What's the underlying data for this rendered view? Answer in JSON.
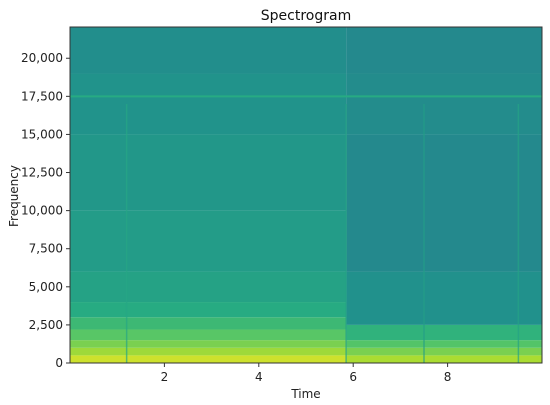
{
  "chart_data": {
    "type": "heatmap",
    "title": "Spectrogram",
    "xlabel": "Time",
    "ylabel": "Frequency",
    "xlim": [
      0,
      10
    ],
    "ylim": [
      0,
      22050
    ],
    "x_ticks": [
      {
        "value": 2,
        "label": "2"
      },
      {
        "value": 4,
        "label": "4"
      },
      {
        "value": 6,
        "label": "6"
      },
      {
        "value": 8,
        "label": "8"
      }
    ],
    "y_ticks": [
      {
        "value": 0,
        "label": "0"
      },
      {
        "value": 2500,
        "label": "2,500"
      },
      {
        "value": 5000,
        "label": "5,000"
      },
      {
        "value": 7500,
        "label": "7,500"
      },
      {
        "value": 10000,
        "label": "10,000"
      },
      {
        "value": 12500,
        "label": "12,500"
      },
      {
        "value": 15000,
        "label": "15,000"
      },
      {
        "value": 17500,
        "label": "17,500"
      },
      {
        "value": 20000,
        "label": "20,000"
      }
    ],
    "colormap": "viridis",
    "grid": false,
    "segments": [
      {
        "time_range": [
          0,
          5.85
        ],
        "frequency_bands": [
          {
            "freq_range": [
              0,
              500
            ],
            "intensity": 0.93
          },
          {
            "freq_range": [
              500,
              1000
            ],
            "intensity": 0.86
          },
          {
            "freq_range": [
              1000,
              1500
            ],
            "intensity": 0.8
          },
          {
            "freq_range": [
              1500,
              2200
            ],
            "intensity": 0.74
          },
          {
            "freq_range": [
              2200,
              3000
            ],
            "intensity": 0.68
          },
          {
            "freq_range": [
              3000,
              4000
            ],
            "intensity": 0.62
          },
          {
            "freq_range": [
              4000,
              6000
            ],
            "intensity": 0.58
          },
          {
            "freq_range": [
              6000,
              10000
            ],
            "intensity": 0.55
          },
          {
            "freq_range": [
              10000,
              15000
            ],
            "intensity": 0.53
          },
          {
            "freq_range": [
              15000,
              19000
            ],
            "intensity": 0.51
          },
          {
            "freq_range": [
              19000,
              22050
            ],
            "intensity": 0.49
          }
        ]
      },
      {
        "time_range": [
          5.85,
          10
        ],
        "frequency_bands": [
          {
            "freq_range": [
              0,
              500
            ],
            "intensity": 0.88
          },
          {
            "freq_range": [
              500,
              1000
            ],
            "intensity": 0.8
          },
          {
            "freq_range": [
              1000,
              1500
            ],
            "intensity": 0.73
          },
          {
            "freq_range": [
              1500,
              2500
            ],
            "intensity": 0.65
          },
          {
            "freq_range": [
              2500,
              6000
            ],
            "intensity": 0.5
          },
          {
            "freq_range": [
              6000,
              15000
            ],
            "intensity": 0.47
          },
          {
            "freq_range": [
              15000,
              19000
            ],
            "intensity": 0.48
          },
          {
            "freq_range": [
              19000,
              22050
            ],
            "intensity": 0.47
          }
        ]
      }
    ],
    "horizontal_lines": [
      {
        "frequency": 17500,
        "time_range": [
          0,
          10
        ],
        "intensity": 0.62
      }
    ],
    "vertical_lines": [
      {
        "time": 1.2,
        "freq_range": [
          0,
          17000
        ],
        "intensity": 0.6
      },
      {
        "time": 5.85,
        "freq_range": [
          0,
          17000
        ],
        "intensity": 0.58
      },
      {
        "time": 7.5,
        "freq_range": [
          0,
          17000
        ],
        "intensity": 0.56
      },
      {
        "time": 9.5,
        "freq_range": [
          0,
          17000
        ],
        "intensity": 0.58
      }
    ]
  }
}
